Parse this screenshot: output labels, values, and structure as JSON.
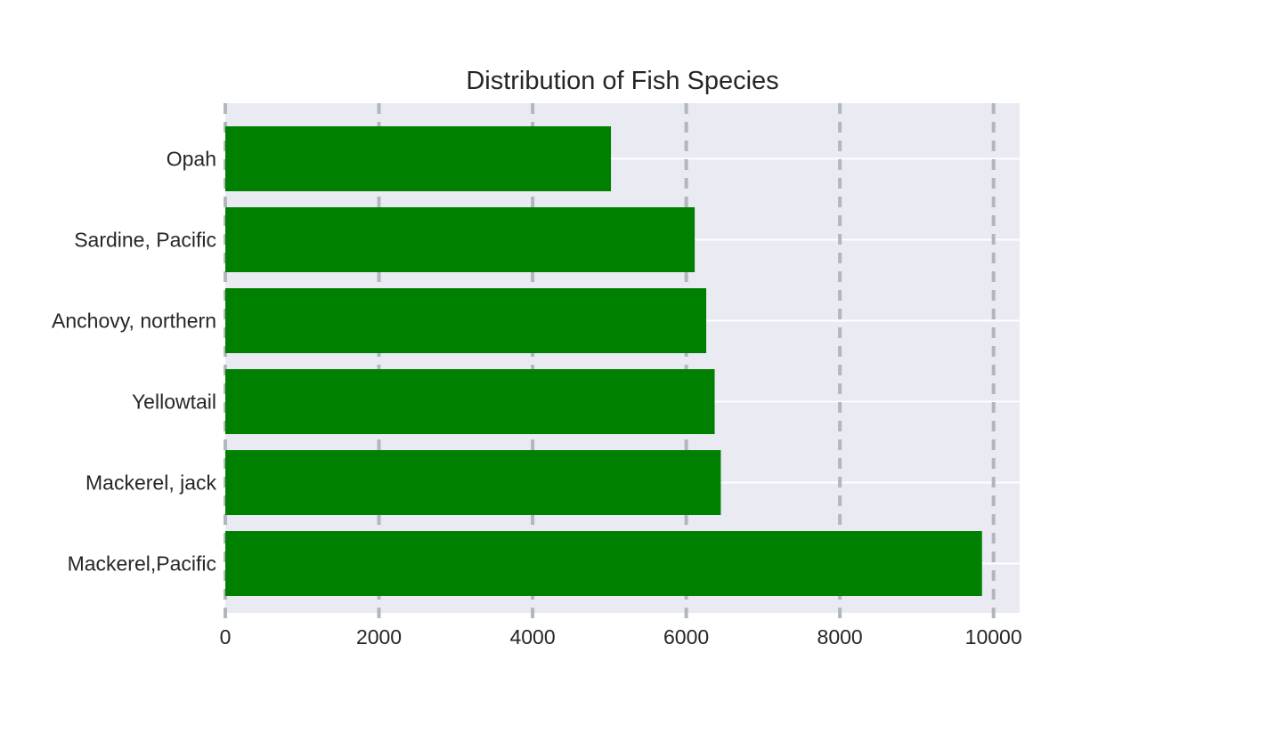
{
  "chart_data": {
    "type": "bar",
    "orientation": "horizontal",
    "title": "Distribution of Fish Species",
    "xlabel": "",
    "ylabel": "",
    "categories": [
      "Mackerel,Pacific",
      "Mackerel, jack",
      "Yellowtail",
      "Anchovy, northern",
      "Sardine, Pacific",
      "Opah"
    ],
    "values": [
      9850,
      6450,
      6370,
      6260,
      6110,
      5020
    ],
    "xlim": [
      0,
      10340
    ],
    "xticks": [
      0,
      2000,
      4000,
      6000,
      8000,
      10000
    ],
    "grid": true,
    "x_grid_style": "dashed",
    "legend": "none",
    "colors": {
      "bar": "#008000",
      "plot_background": "#eaeaf2",
      "x_grid": "#b0b7bd",
      "y_grid": "#ffffff"
    }
  }
}
